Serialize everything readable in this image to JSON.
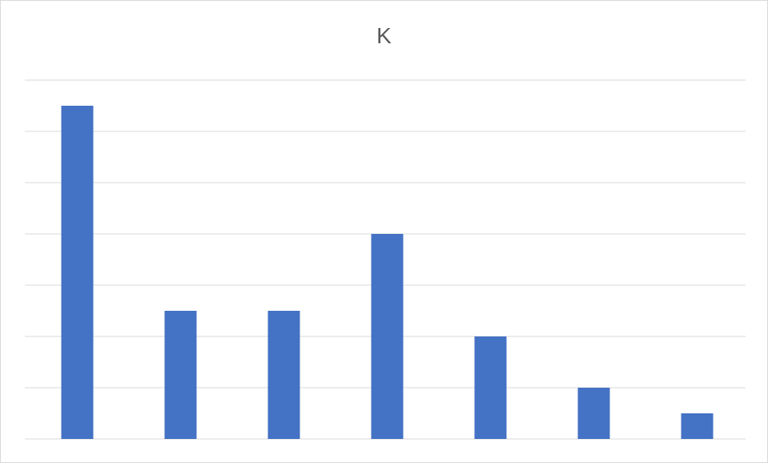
{
  "chart_data": {
    "type": "bar",
    "title": "K",
    "categories": [
      "",
      "",
      "",
      "",
      "",
      "",
      ""
    ],
    "values": [
      13,
      5,
      5,
      8,
      4,
      2,
      1
    ],
    "ylim": [
      0,
      14
    ],
    "grid": true,
    "gridlines": [
      0,
      2,
      4,
      6,
      8,
      10,
      12,
      14
    ],
    "bar_color": "#4472c4",
    "grid_color": "#d9d9d9",
    "xlabel": "",
    "ylabel": ""
  }
}
